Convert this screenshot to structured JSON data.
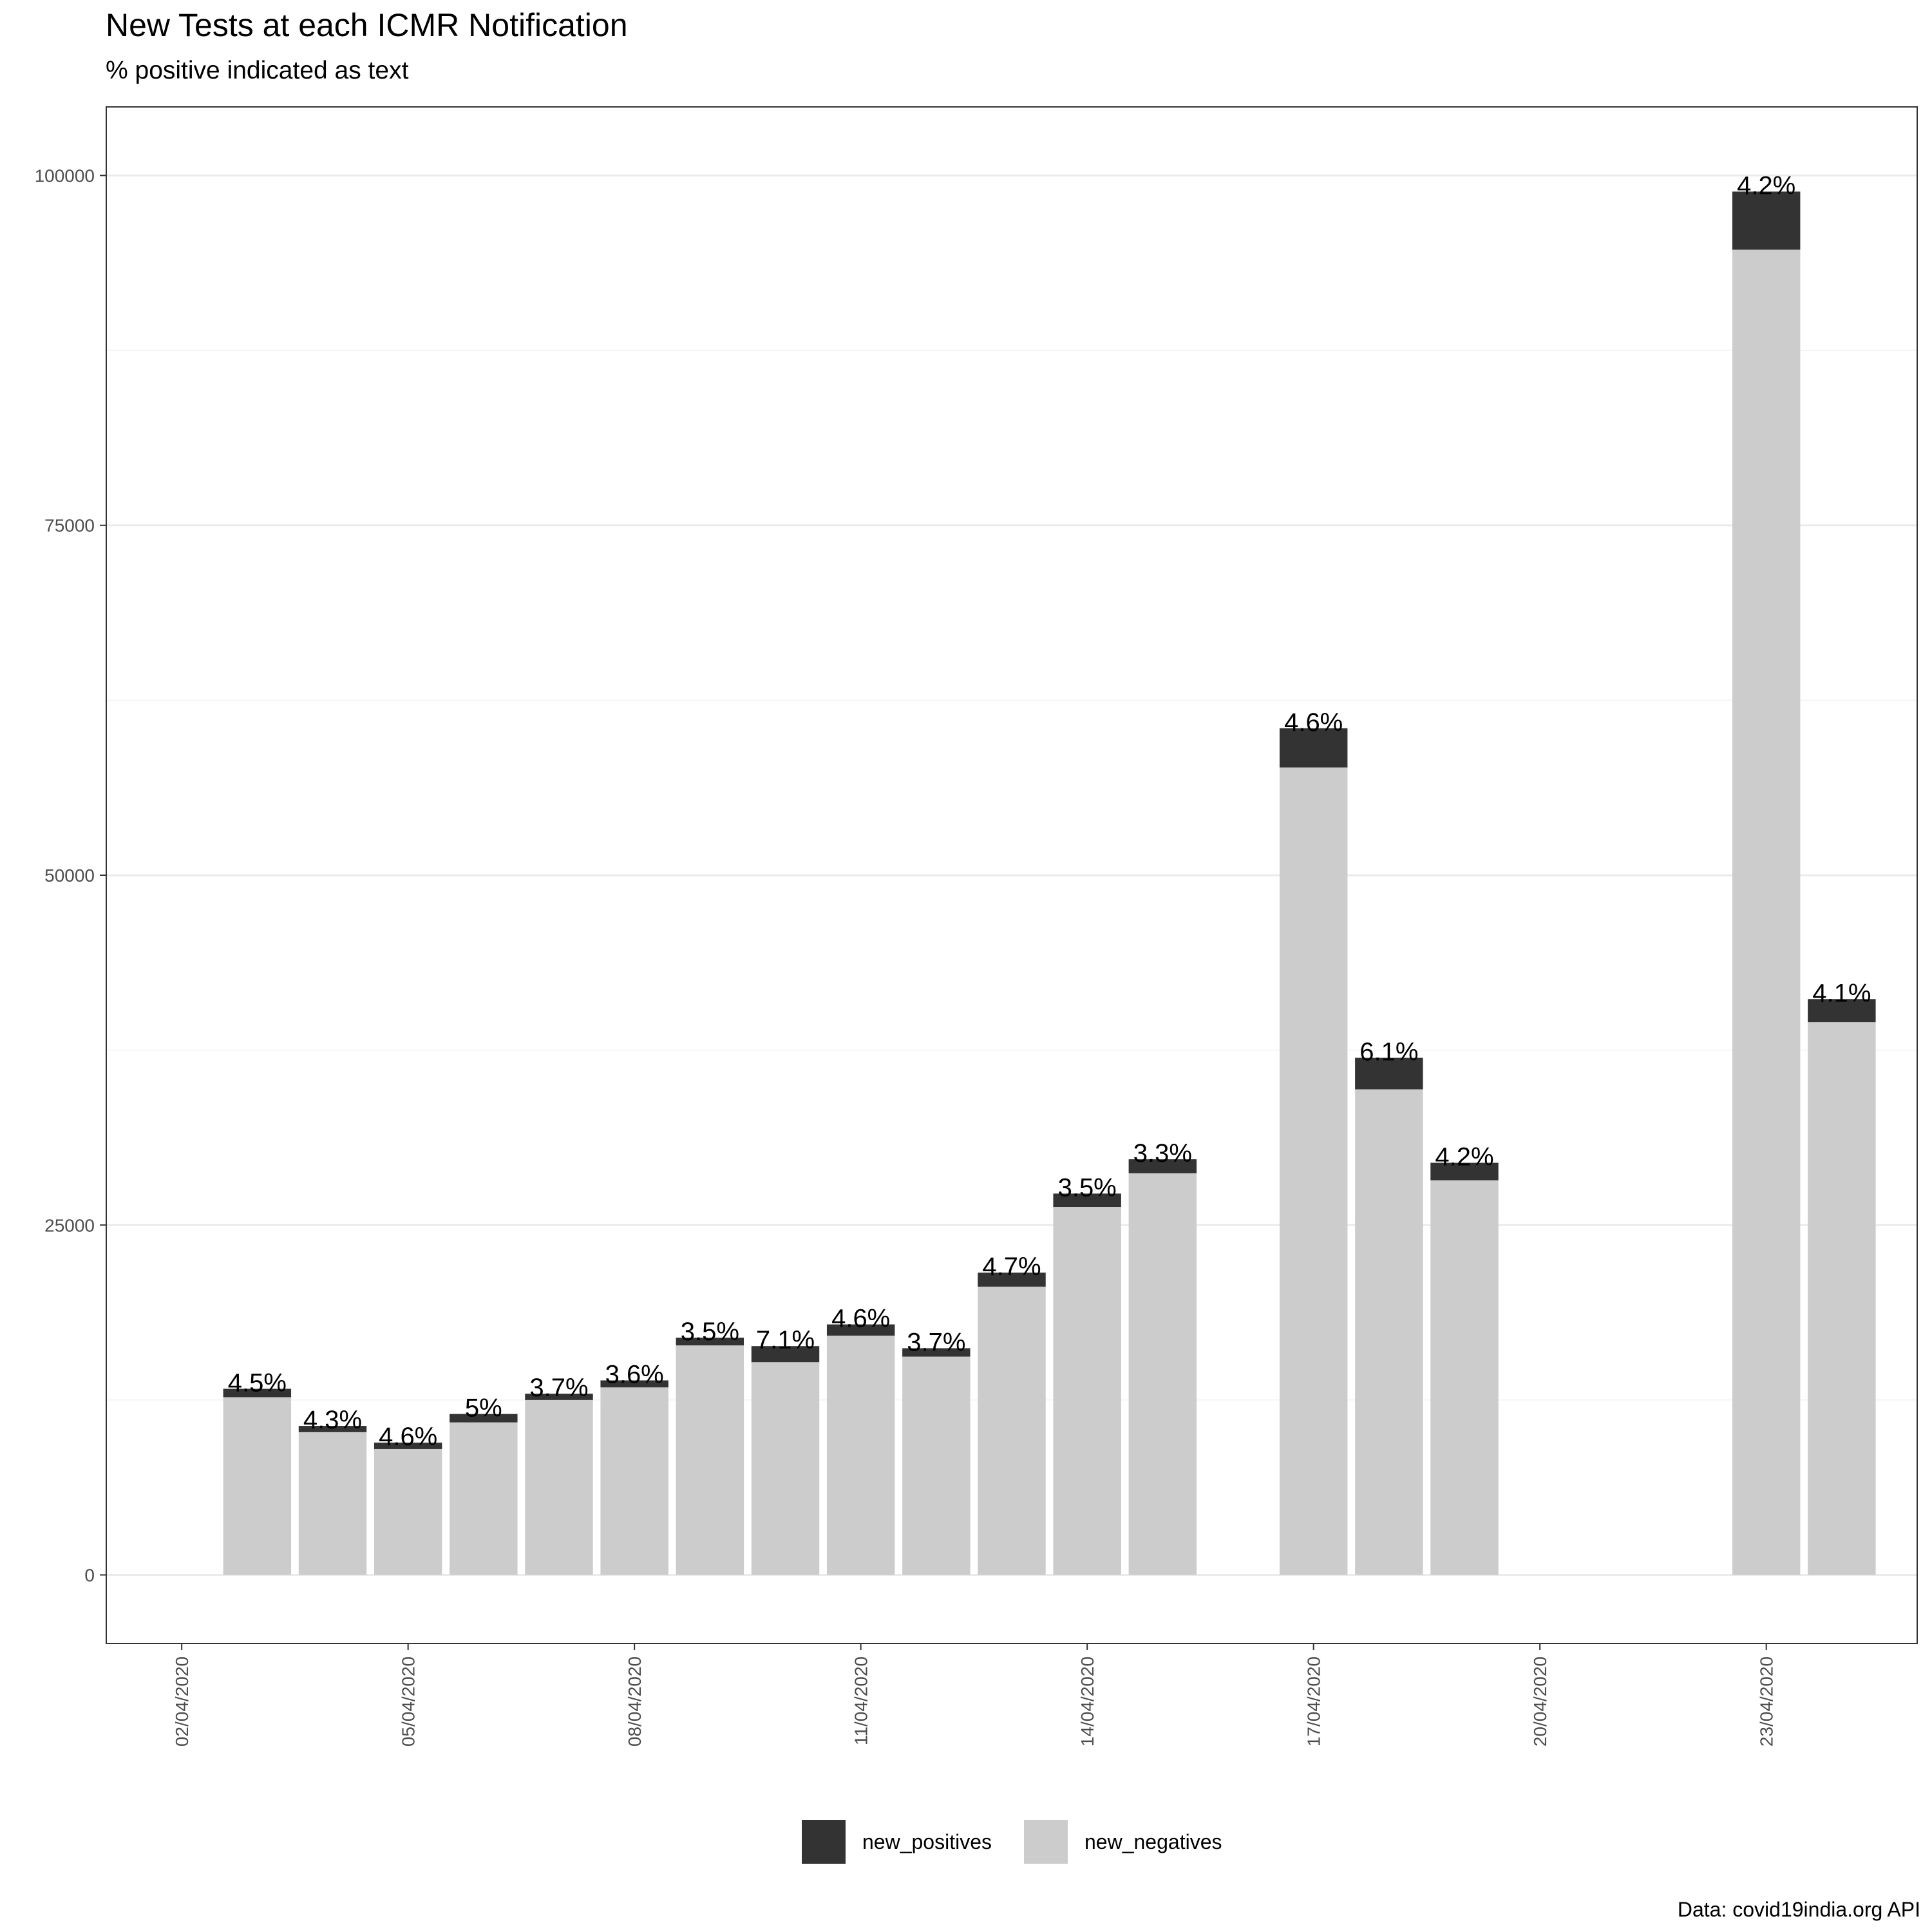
{
  "chart_data": {
    "type": "bar",
    "stacked": true,
    "title": "New Tests at each ICMR Notification",
    "subtitle": "% positive indicated as text",
    "caption": "Data: covid19india.org API",
    "xlabel": "",
    "ylabel": "",
    "ylim": [
      -4900,
      104900
    ],
    "yticks": [
      0,
      25000,
      50000,
      75000,
      100000
    ],
    "x_range": [
      "2020-04-01",
      "2020-04-25"
    ],
    "x_ticks": [
      {
        "date": "2020-04-02",
        "label": "02/04/2020"
      },
      {
        "date": "2020-04-05",
        "label": "05/04/2020"
      },
      {
        "date": "2020-04-08",
        "label": "08/04/2020"
      },
      {
        "date": "2020-04-11",
        "label": "11/04/2020"
      },
      {
        "date": "2020-04-14",
        "label": "14/04/2020"
      },
      {
        "date": "2020-04-17",
        "label": "17/04/2020"
      },
      {
        "date": "2020-04-20",
        "label": "20/04/2020"
      },
      {
        "date": "2020-04-23",
        "label": "23/04/2020"
      }
    ],
    "grid": true,
    "legend_position": "bottom",
    "series": [
      {
        "name": "new_positives",
        "color": "#333333"
      },
      {
        "name": "new_negatives",
        "color": "#cccccc"
      }
    ],
    "bars": [
      {
        "date": "2020-04-03",
        "new_negatives": 12700,
        "new_positives": 600,
        "label": "4.5%"
      },
      {
        "date": "2020-04-04",
        "new_negatives": 10200,
        "new_positives": 450,
        "label": "4.3%"
      },
      {
        "date": "2020-04-05",
        "new_negatives": 9000,
        "new_positives": 450,
        "label": "4.6%"
      },
      {
        "date": "2020-04-06",
        "new_negatives": 10900,
        "new_positives": 600,
        "label": "5%"
      },
      {
        "date": "2020-04-07",
        "new_negatives": 12500,
        "new_positives": 450,
        "label": "3.7%"
      },
      {
        "date": "2020-04-08",
        "new_negatives": 13400,
        "new_positives": 500,
        "label": "3.6%"
      },
      {
        "date": "2020-04-09",
        "new_negatives": 16400,
        "new_positives": 550,
        "label": "3.5%"
      },
      {
        "date": "2020-04-10",
        "new_negatives": 15200,
        "new_positives": 1150,
        "label": "7.1%"
      },
      {
        "date": "2020-04-11",
        "new_negatives": 17100,
        "new_positives": 800,
        "label": "4.6%"
      },
      {
        "date": "2020-04-12",
        "new_negatives": 15600,
        "new_positives": 600,
        "label": "3.7%"
      },
      {
        "date": "2020-04-13",
        "new_negatives": 20600,
        "new_positives": 1000,
        "label": "4.7%"
      },
      {
        "date": "2020-04-14",
        "new_negatives": 26300,
        "new_positives": 950,
        "label": "3.5%"
      },
      {
        "date": "2020-04-15",
        "new_negatives": 28700,
        "new_positives": 1000,
        "label": "3.3%"
      },
      {
        "date": "2020-04-17",
        "new_negatives": 57700,
        "new_positives": 2800,
        "label": "4.6%"
      },
      {
        "date": "2020-04-18",
        "new_negatives": 34700,
        "new_positives": 2250,
        "label": "6.1%"
      },
      {
        "date": "2020-04-19",
        "new_negatives": 28200,
        "new_positives": 1250,
        "label": "4.2%"
      },
      {
        "date": "2020-04-23",
        "new_negatives": 94700,
        "new_positives": 4150,
        "label": "4.2%"
      },
      {
        "date": "2020-04-24",
        "new_negatives": 39500,
        "new_positives": 1650,
        "label": "4.1%"
      }
    ]
  }
}
